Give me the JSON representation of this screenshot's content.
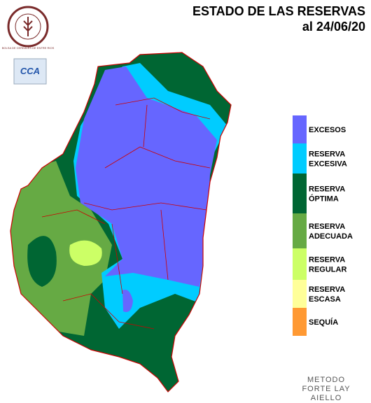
{
  "header": {
    "title": [
      "ESTADO DE LAS RESERVAS",
      "al 24/06/20"
    ]
  },
  "logo": {
    "seal_text": "BOLSA DE CEREALES DE ENTRE RIOS",
    "badge": "CCA"
  },
  "legend": [
    {
      "label": [
        "EXCESOS"
      ],
      "color": "#6666ff"
    },
    {
      "label": [
        "RESERVA",
        "EXCESIVA"
      ],
      "color": "#00ccff"
    },
    {
      "label": [
        "RESERVA",
        "ÓPTIMA"
      ],
      "color": "#006633"
    },
    {
      "label": [
        "RESERVA",
        "ADECUADA"
      ],
      "color": "#66aa44"
    },
    {
      "label": [
        "RESERVA",
        "REGULAR"
      ],
      "color": "#ccff66"
    },
    {
      "label": [
        "RESERVA",
        "ESCASA"
      ],
      "color": "#ffff99"
    },
    {
      "label": [
        "SEQUÍA"
      ],
      "color": "#ff9933"
    }
  ],
  "method": [
    "METODO",
    "FORTE LAY",
    "AIELLO"
  ]
}
